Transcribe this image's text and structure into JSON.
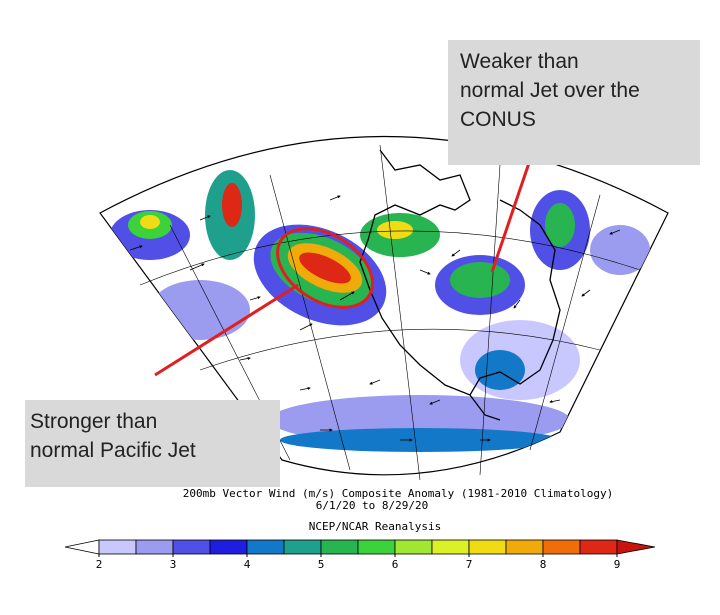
{
  "annotations": [
    {
      "lines": [
        "Weaker than",
        "normal Jet over the",
        "CONUS"
      ]
    },
    {
      "lines": [
        "Stronger than",
        "normal Pacific Jet"
      ]
    }
  ],
  "caption": {
    "title": "200mb Vector Wind (m/s) Composite Anomaly (1981-2010 Climatology)",
    "dates": "6/1/20  to 8/29/20",
    "source": "NCEP/NCAR Reanalysis"
  },
  "colorbar": {
    "ticks": [
      2,
      3,
      4,
      5,
      6,
      7,
      8,
      9
    ],
    "colors": [
      "#c8c8ff",
      "#9b9bf0",
      "#5050e6",
      "#1e1ee0",
      "#1478c8",
      "#1ea08c",
      "#28b450",
      "#3cd23c",
      "#a0e632",
      "#dcf028",
      "#f0dc14",
      "#f0aa0a",
      "#f06e0a",
      "#dc2814"
    ],
    "under_color": "#ffffff",
    "over_color": "#c8140a"
  }
}
